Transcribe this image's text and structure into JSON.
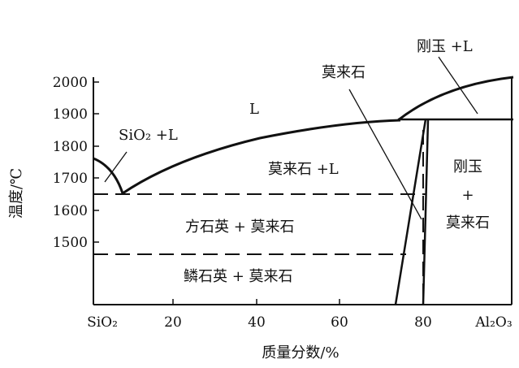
{
  "diagram": {
    "y_axis_label": "温度/℃",
    "x_axis_label": "质量分数/%",
    "y_ticks": [
      "2000",
      "1900",
      "1800",
      "1700",
      "1600",
      "1500"
    ],
    "x_ticks": [
      "SiO₂",
      "20",
      "40",
      "60",
      "80",
      "Al₂O₃"
    ],
    "regions": {
      "liquid": "L",
      "sio2_l": "SiO₂ +L",
      "mullite_l": "莫来石 +L",
      "cristobalite_mullite": "方石英 + 莫来石",
      "tridymite_mullite": "鳞石英 + 莫来石",
      "corundum_l": "刚玉 +L",
      "mullite": "莫来石",
      "corundum_top": "刚玉",
      "plus": "+",
      "corundum_bottom": "莫来石"
    }
  }
}
